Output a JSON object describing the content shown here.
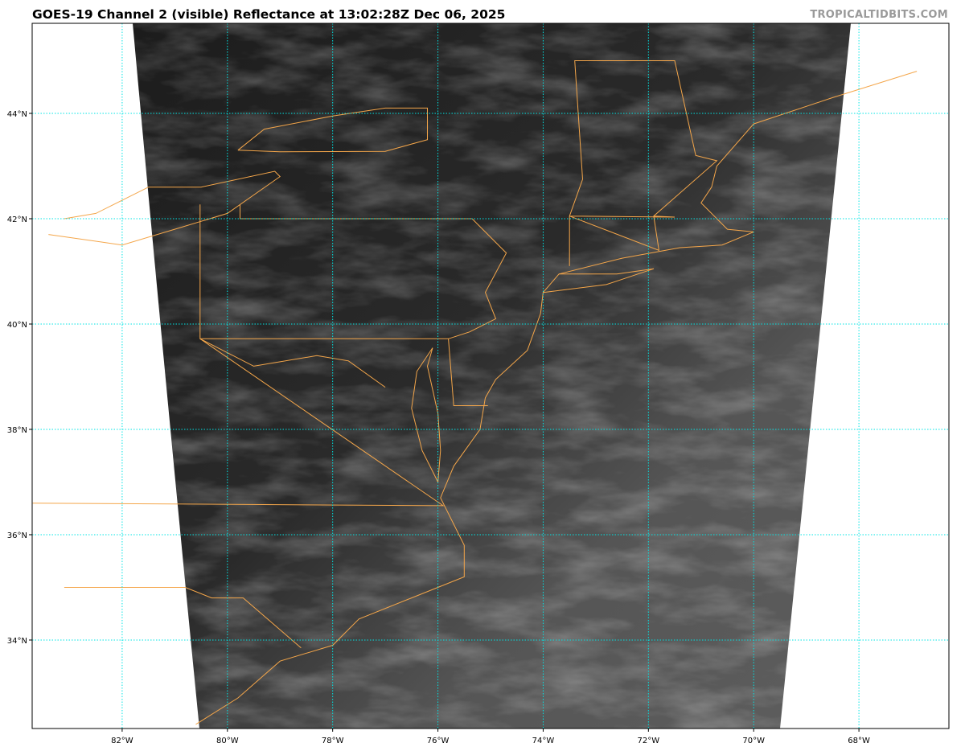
{
  "title": "GOES-19 Channel 2 (visible) Reflectance at 13:02:28Z Dec 06, 2025",
  "watermark": "TROPICALTIDBITS.COM",
  "map": {
    "extent": {
      "lon": [
        -83.71,
        -66.29
      ],
      "lat": [
        32.32,
        45.71
      ]
    },
    "lon_ticks": [
      {
        "value": -82,
        "label": "82°W"
      },
      {
        "value": -80,
        "label": "80°W"
      },
      {
        "value": -78,
        "label": "78°W"
      },
      {
        "value": -76,
        "label": "76°W"
      },
      {
        "value": -74,
        "label": "74°W"
      },
      {
        "value": -72,
        "label": "72°W"
      },
      {
        "value": -70,
        "label": "70°W"
      },
      {
        "value": -68,
        "label": "68°W"
      }
    ],
    "lat_ticks": [
      {
        "value": 44,
        "label": "44°N"
      },
      {
        "value": 42,
        "label": "42°N"
      },
      {
        "value": 40,
        "label": "40°N"
      },
      {
        "value": 38,
        "label": "38°N"
      },
      {
        "value": 36,
        "label": "36°N"
      },
      {
        "value": 34,
        "label": "34°N"
      }
    ],
    "colors": {
      "gridline": "#00e5e5",
      "borders": "#f4a64a",
      "imagery_dark": "#1e1e1e",
      "imagery_light": "#6a6a6a"
    }
  }
}
